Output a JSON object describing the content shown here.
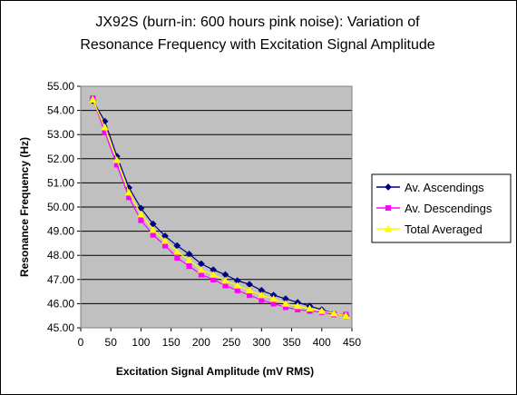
{
  "chart_data": {
    "type": "line",
    "title_lines": [
      "JX92S (burn-in: 600 hours pink noise): Variation of",
      "Resonance Frequency with Excitation Signal Amplitude"
    ],
    "xlabel": "Excitation Signal Amplitude (mV RMS)",
    "ylabel": "Resonance Frequency (Hz)",
    "xlim": [
      0,
      450
    ],
    "ylim": [
      45,
      55
    ],
    "x_ticks": [
      "0",
      "50",
      "100",
      "150",
      "200",
      "250",
      "300",
      "350",
      "400",
      "450"
    ],
    "y_ticks": [
      "45.00",
      "46.00",
      "47.00",
      "48.00",
      "49.00",
      "50.00",
      "51.00",
      "52.00",
      "53.00",
      "54.00",
      "55.00"
    ],
    "grid": "horizontal major gridlines",
    "legend_position": "right",
    "plot_background": "#c0c0c0",
    "x": [
      20,
      40,
      60,
      80,
      100,
      120,
      140,
      160,
      180,
      200,
      220,
      240,
      260,
      280,
      300,
      320,
      340,
      360,
      380,
      400,
      420,
      440
    ],
    "series": [
      {
        "name": "Av. Ascendings",
        "color": "#000080",
        "marker": "diamond",
        "values": [
          54.4,
          53.55,
          52.1,
          50.8,
          49.95,
          49.3,
          48.8,
          48.4,
          48.05,
          47.65,
          47.4,
          47.2,
          46.95,
          46.8,
          46.55,
          46.35,
          46.2,
          46.05,
          45.9,
          45.75,
          45.6,
          45.5
        ]
      },
      {
        "name": "Av. Descendings",
        "color": "#ff00ff",
        "marker": "square",
        "values": [
          54.5,
          53.1,
          51.75,
          50.4,
          49.45,
          48.85,
          48.4,
          47.9,
          47.55,
          47.2,
          47.0,
          46.75,
          46.55,
          46.35,
          46.15,
          46.0,
          45.85,
          45.75,
          45.7,
          45.65,
          45.55,
          45.55
        ]
      },
      {
        "name": "Total Averaged",
        "color": "#ffff00",
        "marker": "triangle",
        "values": [
          54.45,
          53.3,
          51.95,
          50.6,
          49.7,
          49.05,
          48.6,
          48.15,
          47.8,
          47.4,
          47.2,
          46.95,
          46.75,
          46.55,
          46.35,
          46.2,
          46.0,
          45.9,
          45.8,
          45.7,
          45.6,
          45.5
        ]
      }
    ]
  }
}
